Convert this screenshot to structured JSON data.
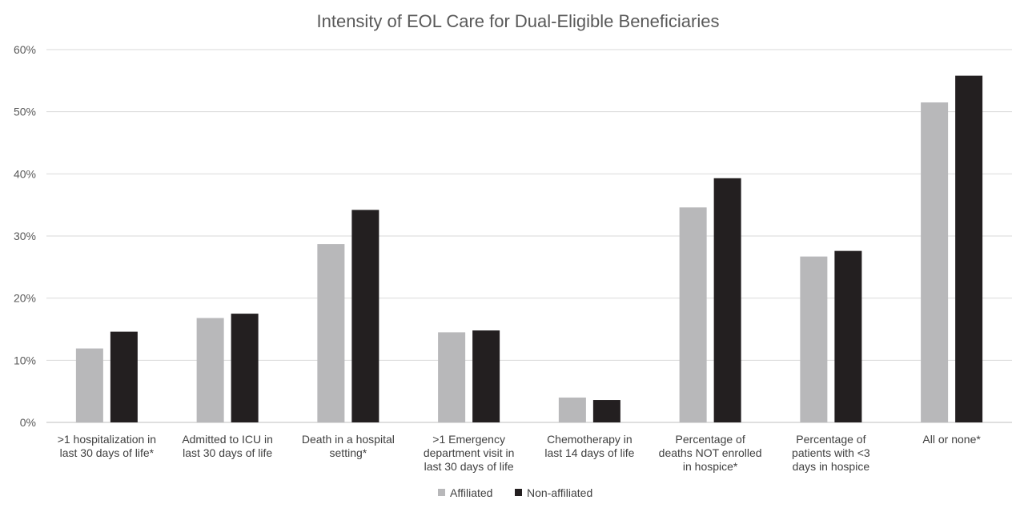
{
  "chart_data": {
    "type": "bar",
    "title": "Intensity of EOL Care for Dual-Eligible Beneficiaries",
    "xlabel": "",
    "ylabel": "",
    "ylim": [
      0,
      60
    ],
    "yticks": [
      0,
      10,
      20,
      30,
      40,
      50,
      60
    ],
    "ytick_labels": [
      "0%",
      "10%",
      "20%",
      "30%",
      "40%",
      "50%",
      "60%"
    ],
    "grid": true,
    "legend_position": "bottom",
    "categories": [
      [
        ">1 hospitalization in",
        "last 30 days of life*"
      ],
      [
        "Admitted to ICU in",
        "last 30 days of life"
      ],
      [
        "Death in a hospital",
        "setting*"
      ],
      [
        ">1 Emergency",
        "department visit in",
        "last 30 days of life"
      ],
      [
        "Chemotherapy in",
        "last 14 days of life"
      ],
      [
        "Percentage of",
        "deaths NOT enrolled",
        "in hospice*"
      ],
      [
        "Percentage of",
        "patients with <3",
        "days in hospice"
      ],
      [
        "All or none*"
      ]
    ],
    "series": [
      {
        "name": "Affiliated",
        "color": "#b8b8ba",
        "values": [
          11.9,
          16.8,
          28.7,
          14.5,
          4.0,
          34.6,
          26.7,
          51.5
        ]
      },
      {
        "name": "Non-affiliated",
        "color": "#231f20",
        "values": [
          14.6,
          17.5,
          34.2,
          14.8,
          3.6,
          39.3,
          27.6,
          55.8
        ]
      }
    ]
  }
}
